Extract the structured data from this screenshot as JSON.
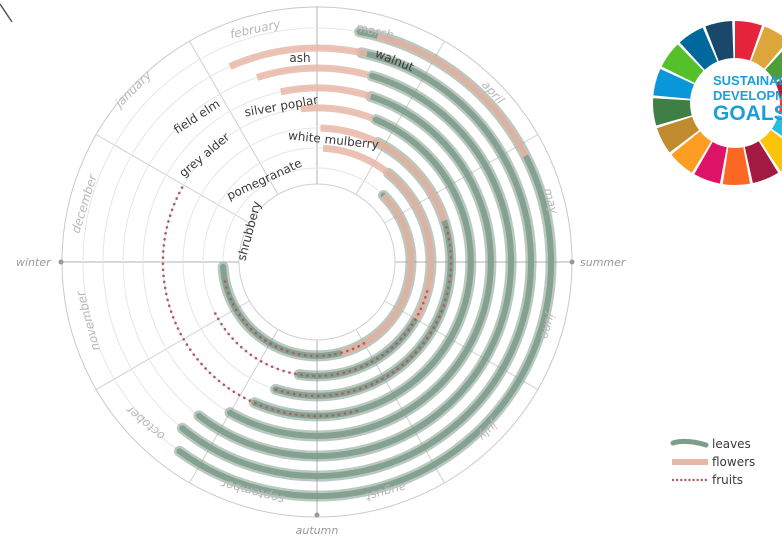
{
  "colors": {
    "leaves": "#7f9c8c",
    "flowers": "#e7b7a7",
    "fruits": "#b05a64",
    "axis": "#999999",
    "sdg": [
      "#e5243b",
      "#dda63a",
      "#4c9f38",
      "#c5192d",
      "#ff3a21",
      "#26bde2",
      "#fcc30b",
      "#a21942",
      "#fd6925",
      "#dd1367",
      "#fd9d24",
      "#bf8b2e",
      "#3f7e44",
      "#0a97d9",
      "#56c02b",
      "#00689d",
      "#19486a"
    ]
  },
  "months": [
    "january",
    "february",
    "march",
    "april",
    "may",
    "june",
    "july",
    "august",
    "september",
    "october",
    "november",
    "december"
  ],
  "seasons": {
    "winter": "winter",
    "summer": "summer",
    "autumn": "autumn"
  },
  "legend": {
    "leaves": "leaves",
    "flowers": "flowers",
    "fruits": "fruits"
  },
  "sdg_logo": {
    "line1": "SUSTAINABLE",
    "line2": "DEVELOPMENT",
    "line3": "GOALS",
    "icon": "sdg-wheel-icon"
  },
  "plants": [
    {
      "name": "walnut",
      "leaves": [
        2.85,
        9.7
      ],
      "flowers": [
        3.0,
        4.6
      ],
      "fruits": null
    },
    {
      "name": "ash",
      "leaves": [
        2.9,
        9.8
      ],
      "flowers": [
        1.7,
        2.95
      ],
      "fruits": null
    },
    {
      "name": "field elm",
      "leaves": [
        3.05,
        9.75
      ],
      "flowers": [
        1.9,
        3.0
      ],
      "fruits": null
    },
    {
      "name": "silver poplar",
      "leaves": [
        3.1,
        9.5
      ],
      "flowers": [
        2.1,
        3.1
      ],
      "fruits": null
    },
    {
      "name": "grey alder",
      "leaves": [
        3.25,
        9.3
      ],
      "flowers": [
        2.3,
        3.2
      ],
      "fruits": [
        8.0,
        12.5
      ]
    },
    {
      "name": "white mulberry",
      "leaves": [
        3.4,
        9.1
      ],
      "flowers": [
        2.55,
        4.9
      ],
      "fruits": [
        5.0,
        9.1
      ]
    },
    {
      "name": "pomegranate",
      "leaves": [
        3.8,
        8.8
      ],
      "flowers": [
        2.6,
        6.5
      ],
      "fruits": [
        6.0,
        10.7
      ]
    },
    {
      "name": "shrubbery",
      "leaves": [
        4.0,
        11.4
      ],
      "flowers": [
        4.0,
        8.0
      ],
      "fruits": [
        7.5,
        11.2
      ]
    }
  ]
}
